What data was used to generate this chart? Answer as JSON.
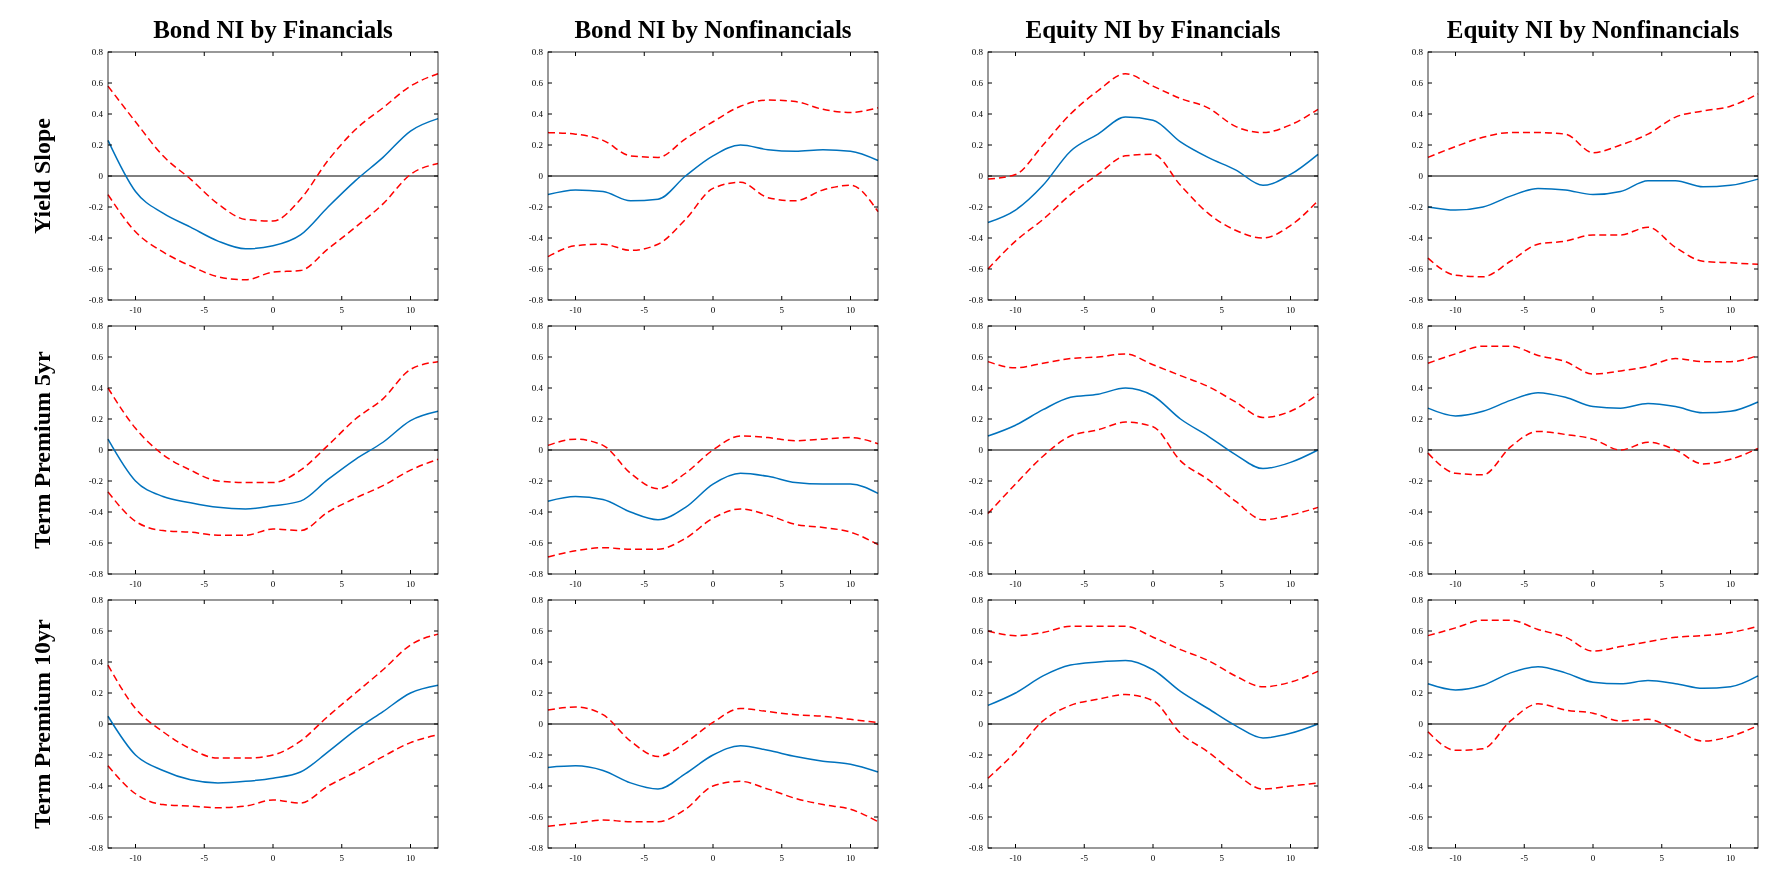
{
  "chart_data": [
    {
      "type": "line",
      "title": "Bond NI by Financials",
      "ylabel": "Yield Slope",
      "x": [
        -12,
        -10,
        -8,
        -6,
        -4,
        -2,
        0,
        2,
        4,
        6,
        8,
        10,
        12
      ],
      "xlim": [
        -12,
        12
      ],
      "xticks": [
        -10,
        -5,
        0,
        5,
        10
      ],
      "ylim": [
        -0.8,
        0.8
      ],
      "yticks": [
        -0.8,
        -0.6,
        -0.4,
        -0.2,
        0,
        0.2,
        0.4,
        0.6,
        0.8
      ],
      "ref_lines": [
        {
          "axis": "y",
          "value": 0,
          "color": "#000000"
        }
      ],
      "series": [
        {
          "color": "#0072bd",
          "line_style": "solid",
          "values": [
            0.23,
            -0.1,
            -0.24,
            -0.33,
            -0.42,
            -0.47,
            -0.45,
            -0.38,
            -0.2,
            -0.03,
            0.12,
            0.29,
            0.37
          ]
        },
        {
          "color": "#ff0000",
          "line_style": "dashed",
          "values": [
            0.58,
            0.35,
            0.13,
            -0.02,
            -0.18,
            -0.28,
            -0.29,
            -0.15,
            0.1,
            0.3,
            0.44,
            0.58,
            0.66
          ]
        },
        {
          "color": "#ff0000",
          "line_style": "dashed",
          "values": [
            -0.12,
            -0.36,
            -0.49,
            -0.58,
            -0.65,
            -0.67,
            -0.62,
            -0.61,
            -0.47,
            -0.33,
            -0.18,
            0.01,
            0.08
          ]
        }
      ]
    },
    {
      "type": "line",
      "title": "Bond NI by Nonfinancials",
      "x": [
        -12,
        -10,
        -8,
        -6,
        -4,
        -2,
        0,
        2,
        4,
        6,
        8,
        10,
        12
      ],
      "xlim": [
        -12,
        12
      ],
      "xticks": [
        -10,
        -5,
        0,
        5,
        10
      ],
      "ylim": [
        -0.8,
        0.8
      ],
      "yticks": [
        -0.8,
        -0.6,
        -0.4,
        -0.2,
        0,
        0.2,
        0.4,
        0.6,
        0.8
      ],
      "ref_lines": [
        {
          "axis": "y",
          "value": 0,
          "color": "#000000"
        }
      ],
      "series": [
        {
          "color": "#0072bd",
          "line_style": "solid",
          "values": [
            -0.12,
            -0.09,
            -0.1,
            -0.16,
            -0.15,
            0.0,
            0.13,
            0.2,
            0.17,
            0.16,
            0.17,
            0.16,
            0.1
          ]
        },
        {
          "color": "#ff0000",
          "line_style": "dashed",
          "values": [
            0.28,
            0.27,
            0.23,
            0.13,
            0.12,
            0.24,
            0.35,
            0.45,
            0.49,
            0.48,
            0.43,
            0.41,
            0.44
          ]
        },
        {
          "color": "#ff0000",
          "line_style": "dashed",
          "values": [
            -0.52,
            -0.45,
            -0.44,
            -0.48,
            -0.44,
            -0.28,
            -0.08,
            -0.04,
            -0.14,
            -0.16,
            -0.09,
            -0.06,
            -0.23
          ]
        }
      ]
    },
    {
      "type": "line",
      "title": "Equity NI by Financials",
      "x": [
        -12,
        -10,
        -8,
        -6,
        -4,
        -2,
        0,
        2,
        4,
        6,
        8,
        10,
        12
      ],
      "xlim": [
        -12,
        12
      ],
      "xticks": [
        -10,
        -5,
        0,
        5,
        10
      ],
      "ylim": [
        -0.8,
        0.8
      ],
      "yticks": [
        -0.8,
        -0.6,
        -0.4,
        -0.2,
        0,
        0.2,
        0.4,
        0.6,
        0.8
      ],
      "ref_lines": [
        {
          "axis": "y",
          "value": 0,
          "color": "#000000"
        }
      ],
      "series": [
        {
          "color": "#0072bd",
          "line_style": "solid",
          "values": [
            -0.3,
            -0.22,
            -0.06,
            0.16,
            0.27,
            0.38,
            0.36,
            0.22,
            0.12,
            0.04,
            -0.06,
            0.01,
            0.14
          ]
        },
        {
          "color": "#ff0000",
          "line_style": "dashed",
          "values": [
            -0.02,
            0.01,
            0.2,
            0.4,
            0.55,
            0.66,
            0.58,
            0.5,
            0.44,
            0.32,
            0.28,
            0.33,
            0.43
          ]
        },
        {
          "color": "#ff0000",
          "line_style": "dashed",
          "values": [
            -0.6,
            -0.42,
            -0.28,
            -0.12,
            0.01,
            0.13,
            0.14,
            -0.06,
            -0.24,
            -0.35,
            -0.4,
            -0.32,
            -0.16
          ]
        }
      ]
    },
    {
      "type": "line",
      "title": "Equity NI by Nonfinancials",
      "x": [
        -12,
        -10,
        -8,
        -6,
        -4,
        -2,
        0,
        2,
        4,
        6,
        8,
        10,
        12
      ],
      "xlim": [
        -12,
        12
      ],
      "xticks": [
        -10,
        -5,
        0,
        5,
        10
      ],
      "ylim": [
        -0.8,
        0.8
      ],
      "yticks": [
        -0.8,
        -0.6,
        -0.4,
        -0.2,
        0,
        0.2,
        0.4,
        0.6,
        0.8
      ],
      "ref_lines": [
        {
          "axis": "y",
          "value": 0,
          "color": "#000000"
        }
      ],
      "series": [
        {
          "color": "#0072bd",
          "line_style": "solid",
          "values": [
            -0.2,
            -0.22,
            -0.2,
            -0.13,
            -0.08,
            -0.09,
            -0.12,
            -0.1,
            -0.03,
            -0.03,
            -0.07,
            -0.06,
            -0.02
          ]
        },
        {
          "color": "#ff0000",
          "line_style": "dashed",
          "values": [
            0.12,
            0.19,
            0.25,
            0.28,
            0.28,
            0.27,
            0.15,
            0.2,
            0.27,
            0.38,
            0.42,
            0.45,
            0.53
          ]
        },
        {
          "color": "#ff0000",
          "line_style": "dashed",
          "values": [
            -0.53,
            -0.64,
            -0.65,
            -0.55,
            -0.44,
            -0.42,
            -0.38,
            -0.38,
            -0.33,
            -0.46,
            -0.55,
            -0.56,
            -0.57
          ]
        }
      ]
    },
    {
      "type": "line",
      "ylabel": "Term Premium 5yr",
      "x": [
        -12,
        -10,
        -8,
        -6,
        -4,
        -2,
        0,
        2,
        4,
        6,
        8,
        10,
        12
      ],
      "xlim": [
        -12,
        12
      ],
      "xticks": [
        -10,
        -5,
        0,
        5,
        10
      ],
      "ylim": [
        -0.8,
        0.8
      ],
      "yticks": [
        -0.8,
        -0.6,
        -0.4,
        -0.2,
        0,
        0.2,
        0.4,
        0.6,
        0.8
      ],
      "ref_lines": [
        {
          "axis": "y",
          "value": 0,
          "color": "#000000"
        }
      ],
      "series": [
        {
          "color": "#0072bd",
          "line_style": "solid",
          "values": [
            0.07,
            -0.2,
            -0.3,
            -0.34,
            -0.37,
            -0.38,
            -0.36,
            -0.33,
            -0.19,
            -0.06,
            0.05,
            0.19,
            0.25
          ]
        },
        {
          "color": "#ff0000",
          "line_style": "dashed",
          "values": [
            0.4,
            0.14,
            -0.03,
            -0.13,
            -0.2,
            -0.21,
            -0.21,
            -0.13,
            0.03,
            0.2,
            0.33,
            0.52,
            0.57
          ]
        },
        {
          "color": "#ff0000",
          "line_style": "dashed",
          "values": [
            -0.27,
            -0.46,
            -0.52,
            -0.53,
            -0.55,
            -0.55,
            -0.51,
            -0.52,
            -0.4,
            -0.31,
            -0.23,
            -0.13,
            -0.06
          ]
        }
      ]
    },
    {
      "type": "line",
      "x": [
        -12,
        -10,
        -8,
        -6,
        -4,
        -2,
        0,
        2,
        4,
        6,
        8,
        10,
        12
      ],
      "xlim": [
        -12,
        12
      ],
      "xticks": [
        -10,
        -5,
        0,
        5,
        10
      ],
      "ylim": [
        -0.8,
        0.8
      ],
      "yticks": [
        -0.8,
        -0.6,
        -0.4,
        -0.2,
        0,
        0.2,
        0.4,
        0.6,
        0.8
      ],
      "ref_lines": [
        {
          "axis": "y",
          "value": 0,
          "color": "#000000"
        }
      ],
      "series": [
        {
          "color": "#0072bd",
          "line_style": "solid",
          "values": [
            -0.33,
            -0.3,
            -0.32,
            -0.4,
            -0.45,
            -0.37,
            -0.22,
            -0.15,
            -0.17,
            -0.21,
            -0.22,
            -0.22,
            -0.28
          ]
        },
        {
          "color": "#ff0000",
          "line_style": "dashed",
          "values": [
            0.03,
            0.07,
            0.03,
            -0.15,
            -0.25,
            -0.15,
            0.0,
            0.09,
            0.08,
            0.06,
            0.07,
            0.08,
            0.04
          ]
        },
        {
          "color": "#ff0000",
          "line_style": "dashed",
          "values": [
            -0.69,
            -0.65,
            -0.63,
            -0.64,
            -0.64,
            -0.57,
            -0.44,
            -0.38,
            -0.42,
            -0.48,
            -0.5,
            -0.53,
            -0.61
          ]
        }
      ]
    },
    {
      "type": "line",
      "x": [
        -12,
        -10,
        -8,
        -6,
        -4,
        -2,
        0,
        2,
        4,
        6,
        8,
        10,
        12
      ],
      "xlim": [
        -12,
        12
      ],
      "xticks": [
        -10,
        -5,
        0,
        5,
        10
      ],
      "ylim": [
        -0.8,
        0.8
      ],
      "yticks": [
        -0.8,
        -0.6,
        -0.4,
        -0.2,
        0,
        0.2,
        0.4,
        0.6,
        0.8
      ],
      "ref_lines": [
        {
          "axis": "y",
          "value": 0,
          "color": "#000000"
        }
      ],
      "series": [
        {
          "color": "#0072bd",
          "line_style": "solid",
          "values": [
            0.09,
            0.16,
            0.26,
            0.34,
            0.36,
            0.4,
            0.35,
            0.2,
            0.09,
            -0.03,
            -0.12,
            -0.08,
            0.0
          ]
        },
        {
          "color": "#ff0000",
          "line_style": "dashed",
          "values": [
            0.57,
            0.53,
            0.56,
            0.59,
            0.6,
            0.62,
            0.55,
            0.48,
            0.41,
            0.31,
            0.21,
            0.25,
            0.36
          ]
        },
        {
          "color": "#ff0000",
          "line_style": "dashed",
          "values": [
            -0.41,
            -0.22,
            -0.04,
            0.09,
            0.13,
            0.18,
            0.15,
            -0.07,
            -0.19,
            -0.33,
            -0.45,
            -0.42,
            -0.37
          ]
        }
      ]
    },
    {
      "type": "line",
      "x": [
        -12,
        -10,
        -8,
        -6,
        -4,
        -2,
        0,
        2,
        4,
        6,
        8,
        10,
        12
      ],
      "xlim": [
        -12,
        12
      ],
      "xticks": [
        -10,
        -5,
        0,
        5,
        10
      ],
      "ylim": [
        -0.8,
        0.8
      ],
      "yticks": [
        -0.8,
        -0.6,
        -0.4,
        -0.2,
        0,
        0.2,
        0.4,
        0.6,
        0.8
      ],
      "ref_lines": [
        {
          "axis": "y",
          "value": 0,
          "color": "#000000"
        }
      ],
      "series": [
        {
          "color": "#0072bd",
          "line_style": "solid",
          "values": [
            0.27,
            0.22,
            0.25,
            0.32,
            0.37,
            0.34,
            0.28,
            0.27,
            0.3,
            0.28,
            0.24,
            0.25,
            0.31
          ]
        },
        {
          "color": "#ff0000",
          "line_style": "dashed",
          "values": [
            0.56,
            0.62,
            0.67,
            0.67,
            0.61,
            0.57,
            0.49,
            0.51,
            0.54,
            0.59,
            0.57,
            0.57,
            0.61
          ]
        },
        {
          "color": "#ff0000",
          "line_style": "dashed",
          "values": [
            -0.02,
            -0.15,
            -0.16,
            0.02,
            0.12,
            0.1,
            0.07,
            0.0,
            0.05,
            0.0,
            -0.09,
            -0.06,
            0.01
          ]
        }
      ]
    },
    {
      "type": "line",
      "ylabel": "Term Premium 10yr",
      "x": [
        -12,
        -10,
        -8,
        -6,
        -4,
        -2,
        0,
        2,
        4,
        6,
        8,
        10,
        12
      ],
      "xlim": [
        -12,
        12
      ],
      "xticks": [
        -10,
        -5,
        0,
        5,
        10
      ],
      "ylim": [
        -0.8,
        0.8
      ],
      "yticks": [
        -0.8,
        -0.6,
        -0.4,
        -0.2,
        0,
        0.2,
        0.4,
        0.6,
        0.8
      ],
      "ref_lines": [
        {
          "axis": "y",
          "value": 0,
          "color": "#000000"
        }
      ],
      "series": [
        {
          "color": "#0072bd",
          "line_style": "solid",
          "values": [
            0.05,
            -0.2,
            -0.3,
            -0.36,
            -0.38,
            -0.37,
            -0.35,
            -0.31,
            -0.18,
            -0.04,
            0.08,
            0.2,
            0.25
          ]
        },
        {
          "color": "#ff0000",
          "line_style": "dashed",
          "values": [
            0.38,
            0.1,
            -0.05,
            -0.16,
            -0.22,
            -0.22,
            -0.2,
            -0.11,
            0.05,
            0.2,
            0.35,
            0.51,
            0.58
          ]
        },
        {
          "color": "#ff0000",
          "line_style": "dashed",
          "values": [
            -0.27,
            -0.45,
            -0.52,
            -0.53,
            -0.54,
            -0.53,
            -0.49,
            -0.51,
            -0.4,
            -0.31,
            -0.21,
            -0.12,
            -0.07
          ]
        }
      ]
    },
    {
      "type": "line",
      "x": [
        -12,
        -10,
        -8,
        -6,
        -4,
        -2,
        0,
        2,
        4,
        6,
        8,
        10,
        12
      ],
      "xlim": [
        -12,
        12
      ],
      "xticks": [
        -10,
        -5,
        0,
        5,
        10
      ],
      "ylim": [
        -0.8,
        0.8
      ],
      "yticks": [
        -0.8,
        -0.6,
        -0.4,
        -0.2,
        0,
        0.2,
        0.4,
        0.6,
        0.8
      ],
      "ref_lines": [
        {
          "axis": "y",
          "value": 0,
          "color": "#000000"
        }
      ],
      "series": [
        {
          "color": "#0072bd",
          "line_style": "solid",
          "values": [
            -0.28,
            -0.27,
            -0.3,
            -0.38,
            -0.42,
            -0.32,
            -0.2,
            -0.14,
            -0.17,
            -0.21,
            -0.24,
            -0.26,
            -0.31
          ]
        },
        {
          "color": "#ff0000",
          "line_style": "dashed",
          "values": [
            0.09,
            0.11,
            0.06,
            -0.11,
            -0.21,
            -0.12,
            0.01,
            0.1,
            0.08,
            0.06,
            0.05,
            0.03,
            0.01
          ]
        },
        {
          "color": "#ff0000",
          "line_style": "dashed",
          "values": [
            -0.66,
            -0.64,
            -0.62,
            -0.63,
            -0.63,
            -0.55,
            -0.4,
            -0.37,
            -0.42,
            -0.48,
            -0.52,
            -0.55,
            -0.63
          ]
        }
      ]
    },
    {
      "type": "line",
      "x": [
        -12,
        -10,
        -8,
        -6,
        -4,
        -2,
        0,
        2,
        4,
        6,
        8,
        10,
        12
      ],
      "xlim": [
        -12,
        12
      ],
      "xticks": [
        -10,
        -5,
        0,
        5,
        10
      ],
      "ylim": [
        -0.8,
        0.8
      ],
      "yticks": [
        -0.8,
        -0.6,
        -0.4,
        -0.2,
        0,
        0.2,
        0.4,
        0.6,
        0.8
      ],
      "ref_lines": [
        {
          "axis": "y",
          "value": 0,
          "color": "#000000"
        }
      ],
      "series": [
        {
          "color": "#0072bd",
          "line_style": "solid",
          "values": [
            0.12,
            0.2,
            0.31,
            0.38,
            0.4,
            0.41,
            0.35,
            0.21,
            0.1,
            -0.01,
            -0.09,
            -0.06,
            0.0
          ]
        },
        {
          "color": "#ff0000",
          "line_style": "dashed",
          "values": [
            0.6,
            0.57,
            0.59,
            0.63,
            0.63,
            0.63,
            0.56,
            0.48,
            0.41,
            0.31,
            0.24,
            0.27,
            0.34
          ]
        },
        {
          "color": "#ff0000",
          "line_style": "dashed",
          "values": [
            -0.35,
            -0.18,
            0.02,
            0.12,
            0.16,
            0.19,
            0.15,
            -0.06,
            -0.18,
            -0.32,
            -0.42,
            -0.4,
            -0.38
          ]
        }
      ]
    },
    {
      "type": "line",
      "x": [
        -12,
        -10,
        -8,
        -6,
        -4,
        -2,
        0,
        2,
        4,
        6,
        8,
        10,
        12
      ],
      "xlim": [
        -12,
        12
      ],
      "xticks": [
        -10,
        -5,
        0,
        5,
        10
      ],
      "ylim": [
        -0.8,
        0.8
      ],
      "yticks": [
        -0.8,
        -0.6,
        -0.4,
        -0.2,
        0,
        0.2,
        0.4,
        0.6,
        0.8
      ],
      "ref_lines": [
        {
          "axis": "y",
          "value": 0,
          "color": "#000000"
        }
      ],
      "series": [
        {
          "color": "#0072bd",
          "line_style": "solid",
          "values": [
            0.26,
            0.22,
            0.25,
            0.33,
            0.37,
            0.33,
            0.27,
            0.26,
            0.28,
            0.26,
            0.23,
            0.24,
            0.31
          ]
        },
        {
          "color": "#ff0000",
          "line_style": "dashed",
          "values": [
            0.57,
            0.62,
            0.67,
            0.67,
            0.61,
            0.56,
            0.47,
            0.5,
            0.53,
            0.56,
            0.57,
            0.59,
            0.63
          ]
        },
        {
          "color": "#ff0000",
          "line_style": "dashed",
          "values": [
            -0.05,
            -0.17,
            -0.16,
            0.02,
            0.13,
            0.09,
            0.07,
            0.02,
            0.03,
            -0.04,
            -0.11,
            -0.08,
            -0.01
          ]
        }
      ]
    }
  ]
}
